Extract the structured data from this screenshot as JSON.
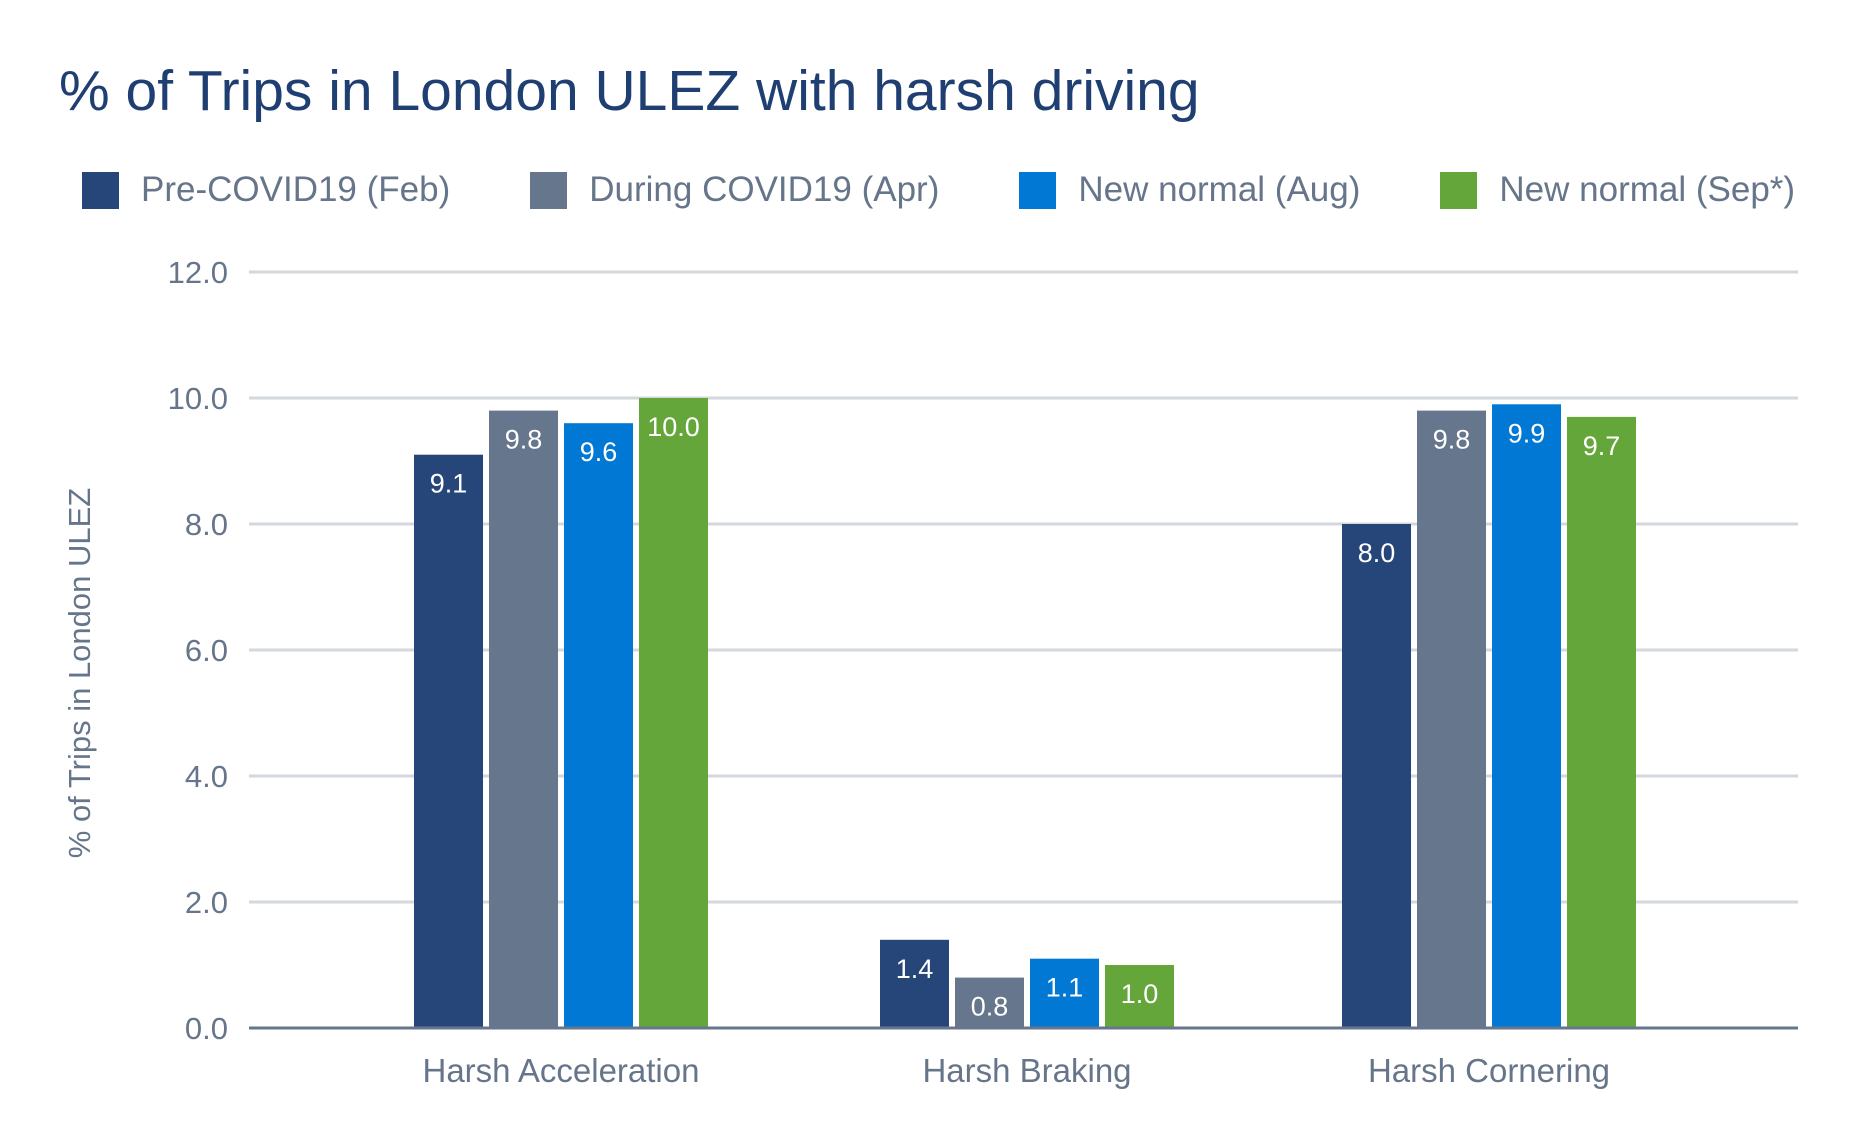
{
  "chart_data": {
    "type": "bar",
    "title": "% of Trips in London ULEZ with harsh driving",
    "xlabel": "",
    "ylabel": "% of Trips in London ULEZ",
    "ylim": [
      0,
      12
    ],
    "yticks": [
      "0.0",
      "2.0",
      "4.0",
      "6.0",
      "8.0",
      "10.0",
      "12.0"
    ],
    "grid": true,
    "legend_position": "top",
    "categories": [
      "Harsh Acceleration",
      "Harsh Braking",
      "Harsh Cornering"
    ],
    "series": [
      {
        "name": "Pre-COVID19 (Feb)",
        "color": "#26467a",
        "values": [
          9.1,
          1.4,
          8.0
        ]
      },
      {
        "name": "During COVID19 (Apr)",
        "color": "#66768c",
        "values": [
          9.8,
          0.8,
          9.8
        ]
      },
      {
        "name": "New normal (Aug)",
        "color": "#0078d4",
        "values": [
          9.6,
          1.1,
          9.9
        ]
      },
      {
        "name": "New normal (Sep*)",
        "color": "#65a63b",
        "values": [
          10.0,
          1.0,
          9.7
        ]
      }
    ],
    "value_labels": [
      [
        "9.1",
        "1.4",
        "8.0"
      ],
      [
        "9.8",
        "0.8",
        "9.8"
      ],
      [
        "9.6",
        "1.1",
        "9.9"
      ],
      [
        "10.0",
        "1.0",
        "9.7"
      ]
    ]
  }
}
